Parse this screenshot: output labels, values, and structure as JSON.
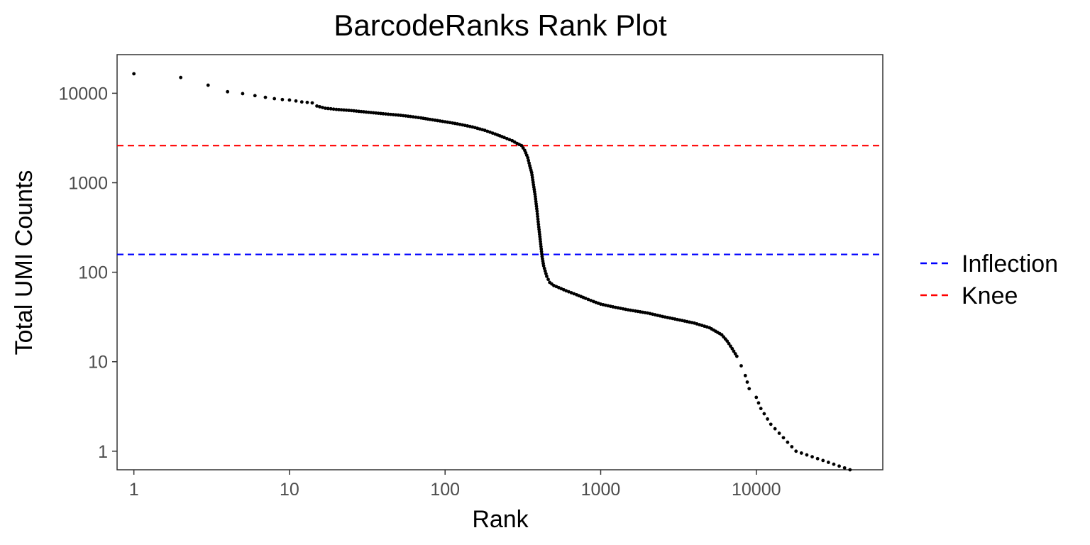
{
  "chart_data": {
    "type": "scatter",
    "title": "BarcodeRanks Rank Plot",
    "xlabel": "Rank",
    "ylabel": "Total UMI Counts",
    "x_scale": "log10",
    "y_scale": "log10",
    "xlim": [
      0.78,
      65000
    ],
    "ylim": [
      0.62,
      27000
    ],
    "x_ticks": [
      {
        "value": 1,
        "label": "1"
      },
      {
        "value": 10,
        "label": "10"
      },
      {
        "value": 100,
        "label": "100"
      },
      {
        "value": 1000,
        "label": "1000"
      },
      {
        "value": 10000,
        "label": "10000"
      }
    ],
    "y_ticks": [
      {
        "value": 1,
        "label": "1"
      },
      {
        "value": 10,
        "label": "10"
      },
      {
        "value": 100,
        "label": "100"
      },
      {
        "value": 1000,
        "label": "1000"
      },
      {
        "value": 10000,
        "label": "10000"
      }
    ],
    "grid": false,
    "legend_position": "right",
    "reference_lines": [
      {
        "name": "Inflection",
        "value": 158,
        "color": "#0000ff",
        "style": "dashed"
      },
      {
        "name": "Knee",
        "value": 2600,
        "color": "#ff0000",
        "style": "dashed"
      }
    ],
    "point_color": "#000000",
    "points": [
      [
        1,
        16500
      ],
      [
        2,
        15000
      ],
      [
        3,
        12300
      ],
      [
        4,
        10400
      ],
      [
        5,
        9900
      ],
      [
        6,
        9400
      ],
      [
        7,
        9000
      ],
      [
        8,
        8700
      ],
      [
        9,
        8500
      ],
      [
        10,
        8400
      ],
      [
        11,
        8200
      ],
      [
        12,
        8000
      ],
      [
        13,
        7900
      ],
      [
        14,
        7800
      ],
      [
        15,
        7200
      ],
      [
        17,
        6800
      ],
      [
        20,
        6600
      ],
      [
        25,
        6400
      ],
      [
        30,
        6200
      ],
      [
        40,
        5900
      ],
      [
        50,
        5700
      ],
      [
        60,
        5500
      ],
      [
        70,
        5300
      ],
      [
        80,
        5100
      ],
      [
        100,
        4800
      ],
      [
        120,
        4550
      ],
      [
        150,
        4200
      ],
      [
        180,
        3850
      ],
      [
        210,
        3500
      ],
      [
        240,
        3200
      ],
      [
        270,
        2950
      ],
      [
        290,
        2750
      ],
      [
        310,
        2600
      ],
      [
        325,
        2300
      ],
      [
        340,
        1900
      ],
      [
        350,
        1550
      ],
      [
        360,
        1300
      ],
      [
        370,
        950
      ],
      [
        380,
        700
      ],
      [
        390,
        480
      ],
      [
        400,
        320
      ],
      [
        410,
        220
      ],
      [
        420,
        150
      ],
      [
        430,
        118
      ],
      [
        450,
        90
      ],
      [
        470,
        77
      ],
      [
        500,
        71
      ],
      [
        600,
        62
      ],
      [
        700,
        56
      ],
      [
        800,
        51
      ],
      [
        900,
        47
      ],
      [
        1000,
        44
      ],
      [
        1200,
        41
      ],
      [
        1500,
        38
      ],
      [
        2000,
        35
      ],
      [
        2500,
        32
      ],
      [
        3000,
        30
      ],
      [
        4000,
        27
      ],
      [
        5000,
        24
      ],
      [
        6000,
        20
      ],
      [
        6500,
        17
      ],
      [
        7000,
        14
      ],
      [
        7500,
        11.5
      ],
      [
        8000,
        9
      ],
      [
        8500,
        7
      ],
      [
        9000,
        5
      ],
      [
        10000,
        4
      ],
      [
        10700,
        3
      ],
      [
        12400,
        2
      ],
      [
        18000,
        1
      ],
      [
        40000,
        0.62
      ]
    ]
  }
}
